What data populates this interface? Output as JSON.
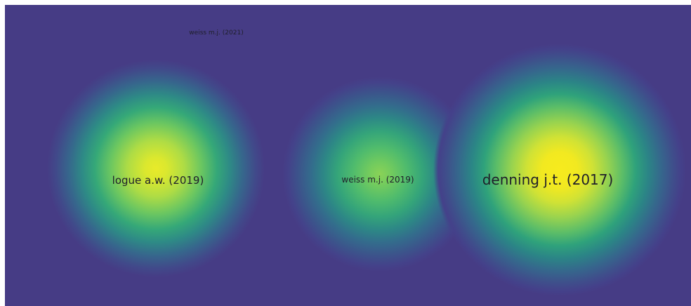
{
  "view": "density",
  "colors": {
    "background": "#463c85",
    "low_density": "#2e8a86",
    "mid_density": "#6ac661",
    "high_density": "#f7eb1d",
    "label_text": "#1f1f2a"
  },
  "clusters": [
    {
      "label": "weiss m.j. (2021)",
      "density": 0.0
    },
    {
      "label": "logue a.w. (2019)",
      "density": 0.85
    },
    {
      "label": "weiss m.j. (2019)",
      "density": 0.55
    },
    {
      "label": "denning j.t. (2017)",
      "density": 1.0
    }
  ]
}
